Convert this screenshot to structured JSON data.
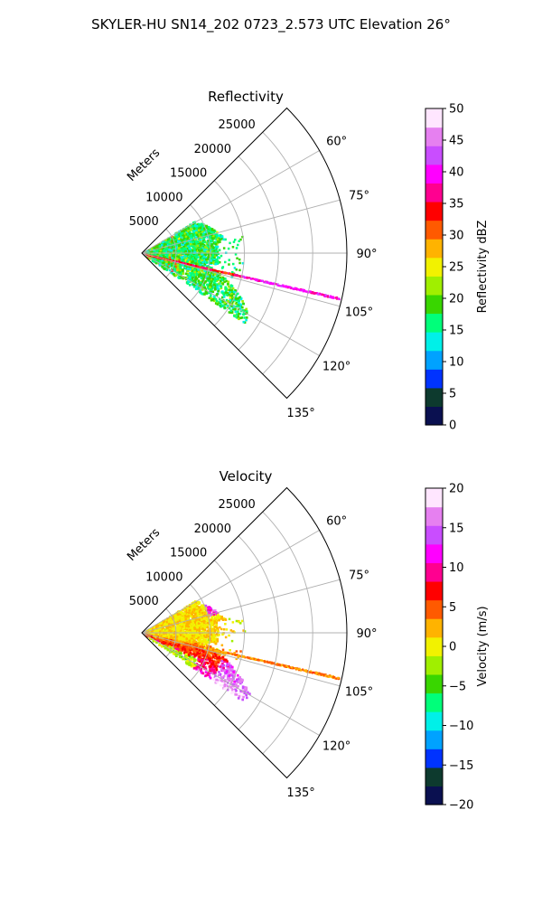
{
  "figure_title": "SKYLER-HU  SN14_202  0723_2.573 UTC Elevation 26°",
  "chart_data": [
    {
      "type": "heatmap",
      "projection": "polar sector",
      "title": "Reflectivity",
      "radial_label": "Meters",
      "range_ticks": [
        "5000",
        "10000",
        "15000",
        "20000",
        "25000"
      ],
      "rlim": [
        0,
        30000
      ],
      "azimuth_ticks": [
        "60°",
        "75°",
        "90°",
        "105°",
        "120°",
        "135°"
      ],
      "azimuth_range_deg": [
        45,
        135
      ],
      "grid": true,
      "colorbar": {
        "label": "Reflectivity dBZ",
        "range": [
          0,
          50
        ],
        "ticks": [
          "0",
          "5",
          "10",
          "15",
          "20",
          "25",
          "30",
          "35",
          "40",
          "45",
          "50"
        ],
        "position": "right"
      },
      "colormap": [
        "#0a1050",
        "#0d3a2e",
        "#0033ff",
        "#00a2ff",
        "#00f0e8",
        "#00ff7a",
        "#39d600",
        "#a0ef00",
        "#f2f200",
        "#ffb300",
        "#ff5a00",
        "#ff0000",
        "#ff0090",
        "#ff00ff",
        "#c94dff",
        "#e680f0",
        "#ffe6ff"
      ],
      "dominant_values": "mostly 12-22 dBZ near the radar, strong streak 35-40 dBZ along 103° azimuth"
    },
    {
      "type": "heatmap",
      "projection": "polar sector",
      "title": "Velocity",
      "radial_label": "Meters",
      "range_ticks": [
        "5000",
        "10000",
        "15000",
        "20000",
        "25000"
      ],
      "rlim": [
        0,
        30000
      ],
      "azimuth_ticks": [
        "60°",
        "75°",
        "90°",
        "105°",
        "120°",
        "135°"
      ],
      "azimuth_range_deg": [
        45,
        135
      ],
      "grid": true,
      "colorbar": {
        "label": "Velocity (m/s)",
        "range": [
          -20,
          20
        ],
        "ticks": [
          "−20",
          "−15",
          "−10",
          "−5",
          "0",
          "5",
          "10",
          "15",
          "20"
        ],
        "position": "right"
      },
      "colormap": [
        "#0a1050",
        "#0d3a2e",
        "#0033ff",
        "#00a2ff",
        "#00f0e8",
        "#00ff7a",
        "#39d600",
        "#a0ef00",
        "#f2f200",
        "#ffb300",
        "#ff5a00",
        "#ff0000",
        "#ff0090",
        "#ff00ff",
        "#c94dff",
        "#e680f0",
        "#ffe6ff"
      ],
      "dominant_values": "near 0 m/s east, +5 to +10 m/s in the southeast lobe, up to +15 m/s at outer edges, −5 m/s near the radar toward the south"
    }
  ]
}
